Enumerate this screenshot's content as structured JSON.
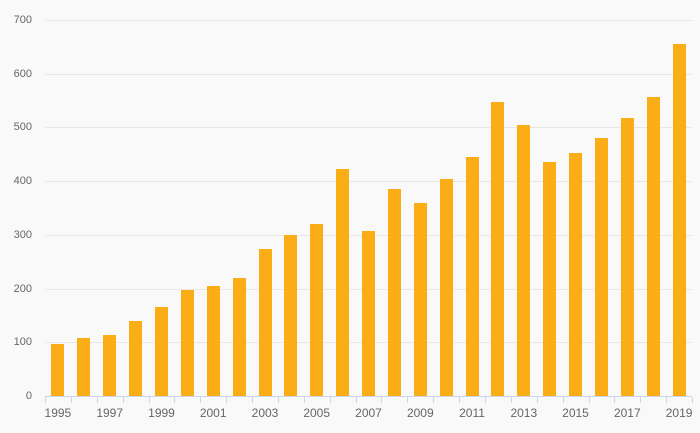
{
  "chart_data": {
    "type": "bar",
    "title": "",
    "xlabel": "",
    "ylabel": "",
    "categories": [
      "1995",
      "1996",
      "1997",
      "1998",
      "1999",
      "2000",
      "2001",
      "2002",
      "2003",
      "2004",
      "2005",
      "2006",
      "2007",
      "2008",
      "2009",
      "2010",
      "2011",
      "2012",
      "2013",
      "2014",
      "2015",
      "2016",
      "2017",
      "2018",
      "2019"
    ],
    "values": [
      97,
      108,
      113,
      140,
      165,
      197,
      204,
      220,
      273,
      300,
      320,
      423,
      308,
      385,
      360,
      404,
      445,
      548,
      505,
      436,
      453,
      481,
      517,
      557,
      655
    ],
    "x_labeled_every": 2,
    "ylim": [
      0,
      700
    ],
    "y_ticks": [
      0,
      100,
      200,
      300,
      400,
      500,
      600,
      700
    ],
    "grid": true,
    "legend": "none",
    "bar_color": "#FAAD14",
    "background_color": "#F9F9F9",
    "gridline_color": "#E7E7E7",
    "axis_line_color": "#CCD6EB",
    "label_color": "#666666"
  }
}
